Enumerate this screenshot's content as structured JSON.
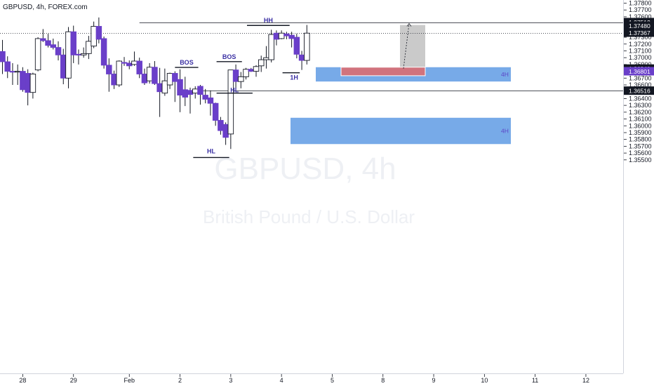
{
  "header": {
    "symbol": "GBPUSD, 4h, FOREX.com"
  },
  "watermark": {
    "line1": "GBPUSD, 4h",
    "line2": "British Pound / U.S. Dollar"
  },
  "colors": {
    "bull_fill": "#ffffff",
    "bull_border": "#131722",
    "bear_fill": "#6a3fc9",
    "wick": "#131722",
    "zone_blue": "#4a8de0",
    "zone_red": "#e06a6a",
    "zone_gray": "#9e9e9e",
    "ann_text": "#3a2fa3"
  },
  "chart_data": {
    "type": "candlestick",
    "x_index_range": [
      0,
      126
    ],
    "ylim": [
      1.35475,
      1.37905
    ],
    "y_ticks": [
      "1.37800",
      "1.37700",
      "1.37600",
      "1.37500",
      "1.37400",
      "1.37300",
      "1.37200",
      "1.37100",
      "1.37000",
      "1.36900",
      "1.36800",
      "1.36700",
      "1.36600",
      "1.36500",
      "1.36400",
      "1.36300",
      "1.36200",
      "1.36100",
      "1.36000",
      "1.35900",
      "1.35800",
      "1.35700",
      "1.35600",
      "1.35500"
    ],
    "x_ticks": [
      {
        "label": "28",
        "index": 4
      },
      {
        "label": "29",
        "index": 14
      },
      {
        "label": "Feb",
        "index": 25
      },
      {
        "label": "2",
        "index": 35
      },
      {
        "label": "3",
        "index": 45
      },
      {
        "label": "4",
        "index": 55
      },
      {
        "label": "5",
        "index": 65
      },
      {
        "label": "8",
        "index": 75
      },
      {
        "label": "9",
        "index": 85
      },
      {
        "label": "10",
        "index": 95
      },
      {
        "label": "11",
        "index": 105
      },
      {
        "label": "12",
        "index": 115
      }
    ],
    "candles": [
      {
        "i": 0,
        "o": 1.3709,
        "h": 1.3726,
        "l": 1.3676,
        "c": 1.3694
      },
      {
        "i": 1,
        "o": 1.3694,
        "h": 1.3702,
        "l": 1.367,
        "c": 1.368
      },
      {
        "i": 2,
        "o": 1.368,
        "h": 1.3692,
        "l": 1.366,
        "c": 1.3679
      },
      {
        "i": 3,
        "o": 1.3679,
        "h": 1.369,
        "l": 1.366,
        "c": 1.368
      },
      {
        "i": 4,
        "o": 1.368,
        "h": 1.3686,
        "l": 1.365,
        "c": 1.3653
      },
      {
        "i": 5,
        "o": 1.3677,
        "h": 1.3683,
        "l": 1.363,
        "c": 1.3649
      },
      {
        "i": 6,
        "o": 1.3649,
        "h": 1.3678,
        "l": 1.364,
        "c": 1.3676
      },
      {
        "i": 7,
        "o": 1.3682,
        "h": 1.373,
        "l": 1.368,
        "c": 1.3728
      },
      {
        "i": 8,
        "o": 1.3728,
        "h": 1.3742,
        "l": 1.3723,
        "c": 1.3725
      },
      {
        "i": 9,
        "o": 1.3725,
        "h": 1.3735,
        "l": 1.3715,
        "c": 1.3718
      },
      {
        "i": 10,
        "o": 1.3719,
        "h": 1.3728,
        "l": 1.3712,
        "c": 1.3715
      },
      {
        "i": 11,
        "o": 1.3715,
        "h": 1.3724,
        "l": 1.3696,
        "c": 1.3704
      },
      {
        "i": 12,
        "o": 1.3704,
        "h": 1.3713,
        "l": 1.3661,
        "c": 1.367
      },
      {
        "i": 13,
        "o": 1.367,
        "h": 1.3745,
        "l": 1.3655,
        "c": 1.3738
      },
      {
        "i": 14,
        "o": 1.3738,
        "h": 1.3747,
        "l": 1.3692,
        "c": 1.3704
      },
      {
        "i": 15,
        "o": 1.3705,
        "h": 1.3712,
        "l": 1.369,
        "c": 1.3704
      },
      {
        "i": 16,
        "o": 1.3704,
        "h": 1.3715,
        "l": 1.37,
        "c": 1.3706
      },
      {
        "i": 17,
        "o": 1.3706,
        "h": 1.3732,
        "l": 1.3698,
        "c": 1.3724
      },
      {
        "i": 18,
        "o": 1.3717,
        "h": 1.3753,
        "l": 1.3714,
        "c": 1.3746
      },
      {
        "i": 19,
        "o": 1.3746,
        "h": 1.3759,
        "l": 1.3721,
        "c": 1.3727
      },
      {
        "i": 20,
        "o": 1.3728,
        "h": 1.3731,
        "l": 1.3684,
        "c": 1.3689
      },
      {
        "i": 21,
        "o": 1.3689,
        "h": 1.3699,
        "l": 1.365,
        "c": 1.3676
      },
      {
        "i": 22,
        "o": 1.3676,
        "h": 1.3681,
        "l": 1.3654,
        "c": 1.366
      },
      {
        "i": 23,
        "o": 1.366,
        "h": 1.3696,
        "l": 1.3657,
        "c": 1.3695
      },
      {
        "i": 24,
        "o": 1.3693,
        "h": 1.3701,
        "l": 1.3688,
        "c": 1.3692
      },
      {
        "i": 25,
        "o": 1.3692,
        "h": 1.3696,
        "l": 1.3683,
        "c": 1.3688
      },
      {
        "i": 26,
        "o": 1.369,
        "h": 1.3709,
        "l": 1.3688,
        "c": 1.3695
      },
      {
        "i": 27,
        "o": 1.3695,
        "h": 1.37,
        "l": 1.367,
        "c": 1.3676
      },
      {
        "i": 28,
        "o": 1.3676,
        "h": 1.3684,
        "l": 1.366,
        "c": 1.3663
      },
      {
        "i": 29,
        "o": 1.3666,
        "h": 1.3692,
        "l": 1.3662,
        "c": 1.3686
      },
      {
        "i": 30,
        "o": 1.3686,
        "h": 1.3695,
        "l": 1.366,
        "c": 1.3662
      },
      {
        "i": 31,
        "o": 1.3662,
        "h": 1.3685,
        "l": 1.3613,
        "c": 1.365
      },
      {
        "i": 32,
        "o": 1.3648,
        "h": 1.3684,
        "l": 1.3644,
        "c": 1.3666
      },
      {
        "i": 33,
        "o": 1.366,
        "h": 1.3678,
        "l": 1.3654,
        "c": 1.3677
      },
      {
        "i": 34,
        "o": 1.3677,
        "h": 1.368,
        "l": 1.3635,
        "c": 1.3665
      },
      {
        "i": 35,
        "o": 1.3668,
        "h": 1.3683,
        "l": 1.362,
        "c": 1.3645
      },
      {
        "i": 36,
        "o": 1.3653,
        "h": 1.3672,
        "l": 1.3629,
        "c": 1.3642
      },
      {
        "i": 37,
        "o": 1.3652,
        "h": 1.3656,
        "l": 1.3618,
        "c": 1.3646
      },
      {
        "i": 38,
        "o": 1.3648,
        "h": 1.3658,
        "l": 1.364,
        "c": 1.3654
      },
      {
        "i": 39,
        "o": 1.3658,
        "h": 1.366,
        "l": 1.3631,
        "c": 1.3646
      },
      {
        "i": 40,
        "o": 1.3645,
        "h": 1.3654,
        "l": 1.3633,
        "c": 1.3639
      },
      {
        "i": 41,
        "o": 1.3641,
        "h": 1.3652,
        "l": 1.3615,
        "c": 1.3633
      },
      {
        "i": 42,
        "o": 1.3633,
        "h": 1.3634,
        "l": 1.36,
        "c": 1.3608
      },
      {
        "i": 43,
        "o": 1.3608,
        "h": 1.3613,
        "l": 1.3587,
        "c": 1.3593
      },
      {
        "i": 44,
        "o": 1.3602,
        "h": 1.3605,
        "l": 1.3572,
        "c": 1.3583
      },
      {
        "i": 45,
        "o": 1.3588,
        "h": 1.3682,
        "l": 1.3566,
        "c": 1.3682
      },
      {
        "i": 46,
        "o": 1.3682,
        "h": 1.369,
        "l": 1.3654,
        "c": 1.3665
      },
      {
        "i": 47,
        "o": 1.3665,
        "h": 1.3679,
        "l": 1.3655,
        "c": 1.3672
      },
      {
        "i": 48,
        "o": 1.3672,
        "h": 1.3685,
        "l": 1.3668,
        "c": 1.3683
      },
      {
        "i": 49,
        "o": 1.3683,
        "h": 1.3685,
        "l": 1.3679,
        "c": 1.368
      },
      {
        "i": 50,
        "o": 1.368,
        "h": 1.3689,
        "l": 1.3672,
        "c": 1.3687
      },
      {
        "i": 51,
        "o": 1.3688,
        "h": 1.3703,
        "l": 1.3679,
        "c": 1.3697
      },
      {
        "i": 52,
        "o": 1.3697,
        "h": 1.3717,
        "l": 1.3684,
        "c": 1.37
      },
      {
        "i": 53,
        "o": 1.3697,
        "h": 1.3741,
        "l": 1.3693,
        "c": 1.3734
      },
      {
        "i": 54,
        "o": 1.3736,
        "h": 1.374,
        "l": 1.3718,
        "c": 1.3727
      },
      {
        "i": 55,
        "o": 1.3728,
        "h": 1.374,
        "l": 1.3727,
        "c": 1.3736
      },
      {
        "i": 56,
        "o": 1.3735,
        "h": 1.3738,
        "l": 1.3727,
        "c": 1.3732
      },
      {
        "i": 57,
        "o": 1.3733,
        "h": 1.3738,
        "l": 1.3715,
        "c": 1.3728
      },
      {
        "i": 58,
        "o": 1.373,
        "h": 1.3735,
        "l": 1.3699,
        "c": 1.3705
      },
      {
        "i": 59,
        "o": 1.3704,
        "h": 1.371,
        "l": 1.3682,
        "c": 1.3696
      },
      {
        "i": 60,
        "o": 1.3696,
        "h": 1.3748,
        "l": 1.369,
        "c": 1.3736
      }
    ],
    "price_tags": [
      {
        "value": 1.37512,
        "label": "1.37512",
        "style": "black",
        "line": "solid",
        "line_from_index": 27
      },
      {
        "value": 1.3748,
        "label": "1.37480",
        "style": "black",
        "line": "none"
      },
      {
        "value": 1.37367,
        "label": "1.37367",
        "style": "black",
        "line": "dotted",
        "line_from_index": 0
      },
      {
        "value": 1.3684,
        "label": "1.36840",
        "style": "black",
        "line": "none"
      },
      {
        "value": 1.36801,
        "label": "1.36801",
        "style": "purple",
        "line": "none"
      },
      {
        "value": 1.36516,
        "label": "1.36516",
        "style": "black",
        "line": "solid",
        "line_from_index": 37
      }
    ],
    "zones": [
      {
        "label": "4H",
        "color": "blue",
        "from_index": 43.5,
        "to_index": 70.5,
        "y_top": 1.3597,
        "y_bottom": 1.3572,
        "label_color": "#5c45c7"
      },
      {
        "label": "4H",
        "color": "blue",
        "from_index": 43.5,
        "to_index": 70.5,
        "y_top": 1.35975,
        "y_bottom": 1.35975,
        "label_color": "#5c45c7",
        "hidden": true
      }
    ],
    "annotations": [
      {
        "text": "BOS",
        "type": "level",
        "y": 1.36857,
        "from_index": 34,
        "to_index": 38.6
      },
      {
        "text": "BOS",
        "type": "level",
        "y": 1.36942,
        "from_index": 42.2,
        "to_index": 47.2
      },
      {
        "text": "HL",
        "type": "level",
        "y": 1.3648,
        "from_index": 42.2,
        "to_index": 49.3
      },
      {
        "text": "HL",
        "type": "level",
        "y": 1.35535,
        "from_index": 37.6,
        "to_index": 44.7
      },
      {
        "text": "HH",
        "type": "level",
        "y": 1.37473,
        "from_index": 48.2,
        "to_index": 56.6
      },
      {
        "text": "1H",
        "type": "level",
        "y": 1.36778,
        "from_index": 55.2,
        "to_index": 58.6
      }
    ]
  }
}
